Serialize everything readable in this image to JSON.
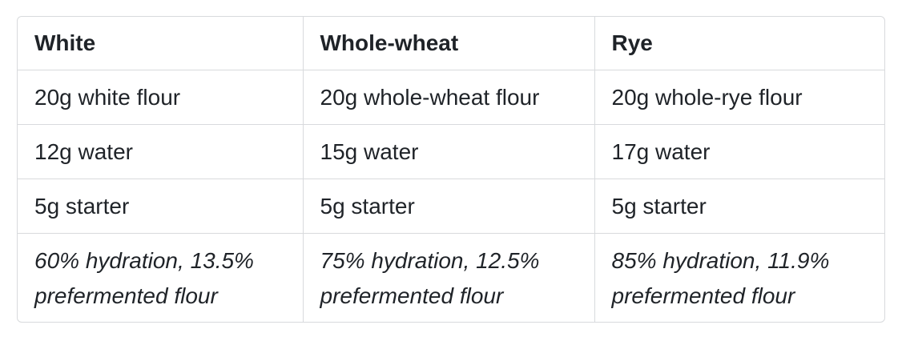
{
  "table": {
    "header": [
      "White",
      "Whole-wheat",
      "Rye"
    ],
    "rows": [
      [
        "20g white flour",
        "20g whole-wheat flour",
        "20g whole-rye flour"
      ],
      [
        "12g water",
        "15g water",
        "17g water"
      ],
      [
        "5g starter",
        "5g starter",
        "5g starter"
      ],
      [
        "60% hydration, 13.5% prefermented flour",
        "75% hydration, 12.5% prefermented flour",
        "85% hydration, 11.9% prefermented flour"
      ]
    ]
  }
}
